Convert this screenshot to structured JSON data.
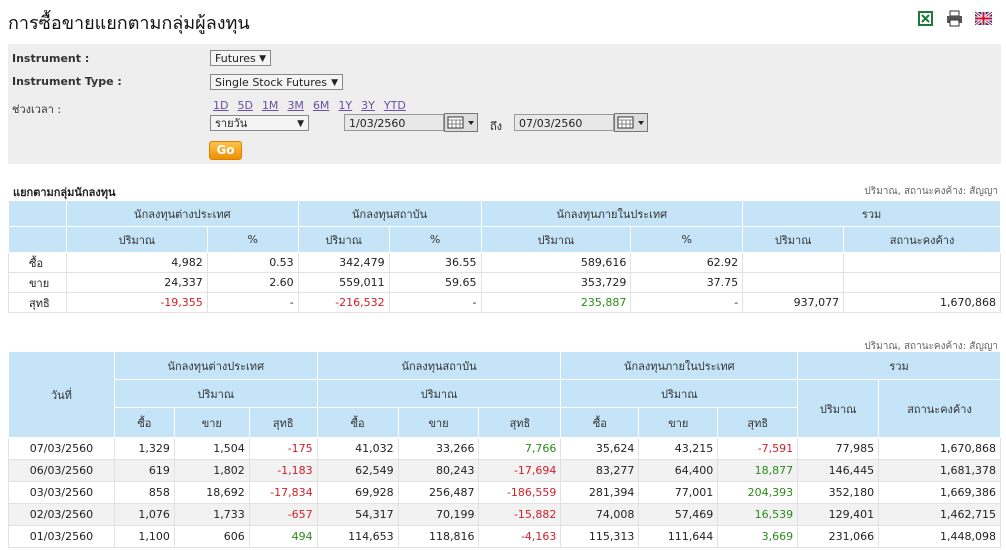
{
  "page": {
    "title": "การซื้อขายแยกตามกลุ่มผู้ลงทุน"
  },
  "toolbar": {
    "icons": [
      "excel-icon",
      "printer-icon",
      "uk-flag-icon"
    ]
  },
  "filters": {
    "instrument_label": "Instrument :",
    "instrument_value": "Futures",
    "instrument_type_label": "Instrument Type :",
    "instrument_type_value": "Single Stock Futures",
    "period_label": "ช่วงเวลา :",
    "ranges": [
      "1D",
      "5D",
      "1M",
      "3M",
      "6M",
      "1Y",
      "3Y",
      "YTD"
    ],
    "frequency_value": "รายวัน",
    "date_from": "1/03/2560",
    "to_label": "ถึง",
    "date_to": "07/03/2560",
    "go_label": "Go"
  },
  "summary": {
    "section_title": "แยกตามกลุ่มนักลงทุน",
    "note": "ปริมาณ, สถานะคงค้าง: สัญญา",
    "groups": [
      "นักลงทุนต่างประเทศ",
      "นักลงทุนสถาบัน",
      "นักลงทุนภายในประเทศ",
      "รวม"
    ],
    "sub_volume": "ปริมาณ",
    "sub_percent": "%",
    "sub_oi": "สถานะคงค้าง",
    "rows": [
      {
        "label": "ซื้อ",
        "c": [
          "4,982",
          "0.53",
          "342,479",
          "36.55",
          "589,616",
          "62.92",
          "",
          ""
        ]
      },
      {
        "label": "ขาย",
        "c": [
          "24,337",
          "2.60",
          "559,011",
          "59.65",
          "353,729",
          "37.75",
          "",
          ""
        ]
      },
      {
        "label": "สุทธิ",
        "c": [
          "-19,355",
          "-",
          "-216,532",
          "-",
          "235,887",
          "-",
          "937,077",
          "1,670,868"
        ]
      }
    ]
  },
  "daily": {
    "note": "ปริมาณ, สถานะคงค้าง: สัญญา",
    "date_header": "วันที่",
    "groups": [
      "นักลงทุนต่างประเทศ",
      "นักลงทุนสถาบัน",
      "นักลงทุนภายในประเทศ",
      "รวม"
    ],
    "sub_volume": "ปริมาณ",
    "sub_oi": "สถานะคงค้าง",
    "cols": [
      "ซื้อ",
      "ขาย",
      "สุทธิ"
    ],
    "rows": [
      {
        "date": "07/03/2560",
        "c": [
          "1,329",
          "1,504",
          "-175",
          "41,032",
          "33,266",
          "7,766",
          "35,624",
          "43,215",
          "-7,591",
          "77,985",
          "1,670,868"
        ]
      },
      {
        "date": "06/03/2560",
        "c": [
          "619",
          "1,802",
          "-1,183",
          "62,549",
          "80,243",
          "-17,694",
          "83,277",
          "64,400",
          "18,877",
          "146,445",
          "1,681,378"
        ]
      },
      {
        "date": "03/03/2560",
        "c": [
          "858",
          "18,692",
          "-17,834",
          "69,928",
          "256,487",
          "-186,559",
          "281,394",
          "77,001",
          "204,393",
          "352,180",
          "1,669,386"
        ]
      },
      {
        "date": "02/03/2560",
        "c": [
          "1,076",
          "1,733",
          "-657",
          "54,317",
          "70,199",
          "-15,882",
          "74,008",
          "57,469",
          "16,539",
          "129,401",
          "1,462,715"
        ]
      },
      {
        "date": "01/03/2560",
        "c": [
          "1,100",
          "606",
          "494",
          "114,653",
          "118,816",
          "-4,163",
          "115,313",
          "111,644",
          "3,669",
          "231,066",
          "1,448,098"
        ]
      }
    ]
  }
}
